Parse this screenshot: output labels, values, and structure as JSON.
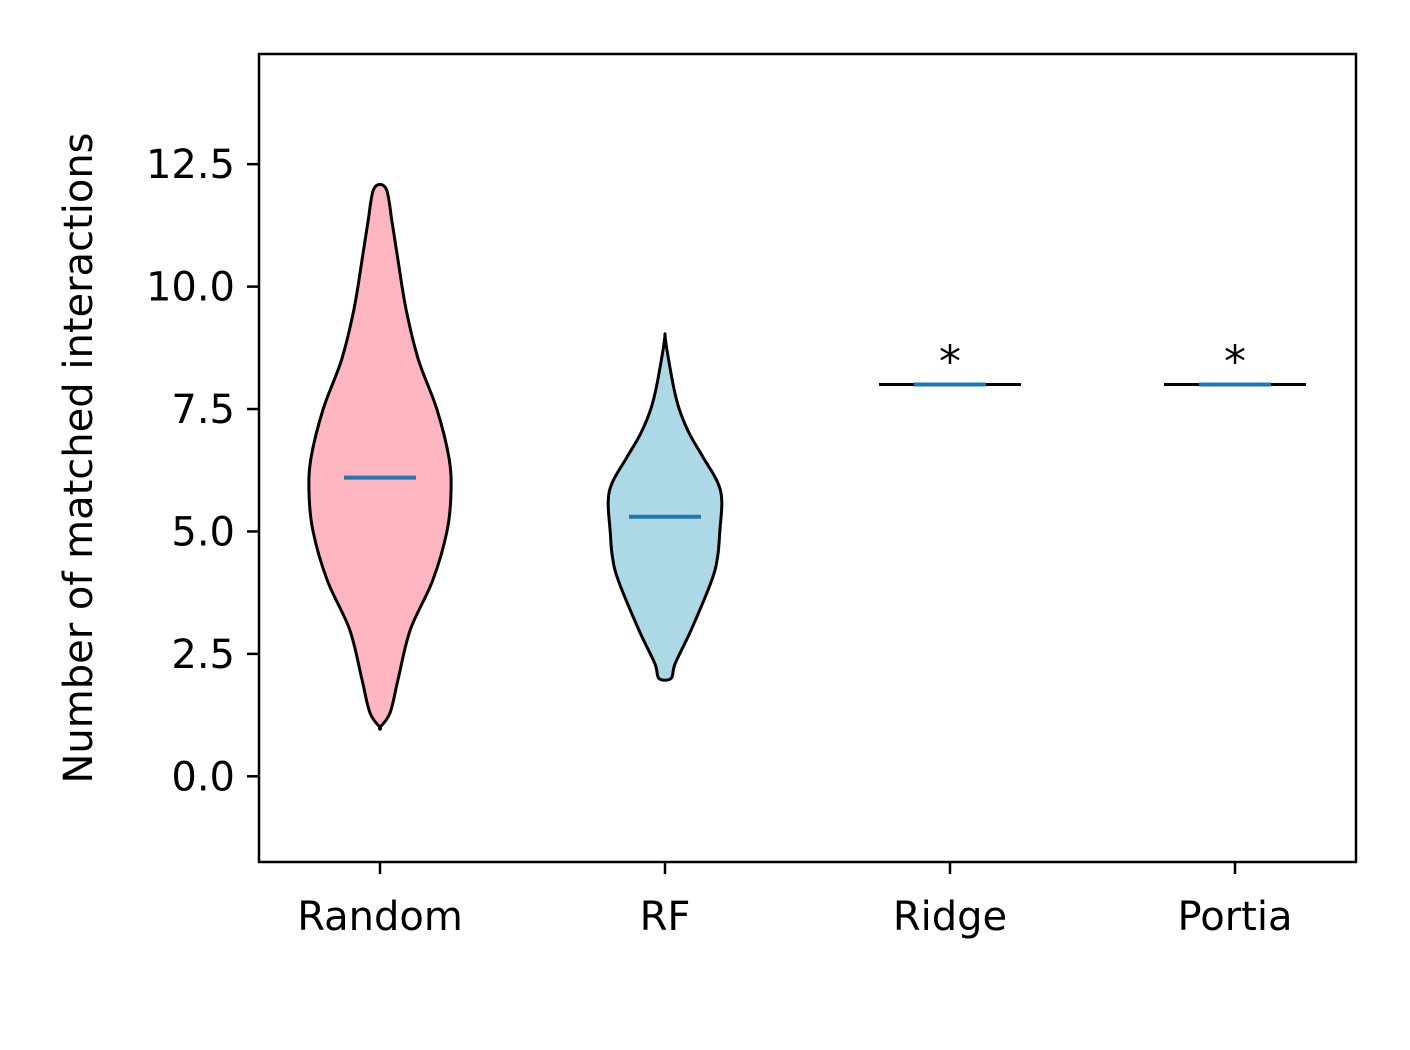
{
  "chart_data": {
    "type": "violin",
    "categories": [
      "Random",
      "RF",
      "Ridge",
      "Portia"
    ],
    "ylabel": "Number of matched interactions",
    "xlabel": "",
    "ylim": [
      -1.75,
      14.75
    ],
    "yticks": [
      0.0,
      2.5,
      5.0,
      7.5,
      10.0,
      12.5
    ],
    "ytick_labels": [
      "0.0",
      "2.5",
      "5.0",
      "7.5",
      "10.0",
      "12.5"
    ],
    "grid": false,
    "legend": "none",
    "series": [
      {
        "category": "Random",
        "color": "#ffb6c1",
        "min": 1,
        "max": 12,
        "mean": 6.1,
        "profile": [
          [
            1.0,
            0.0
          ],
          [
            1.3,
            0.05
          ],
          [
            2.0,
            0.09
          ],
          [
            3.0,
            0.15
          ],
          [
            4.0,
            0.26
          ],
          [
            5.0,
            0.33
          ],
          [
            5.8,
            0.35
          ],
          [
            6.5,
            0.34
          ],
          [
            7.5,
            0.28
          ],
          [
            8.5,
            0.19
          ],
          [
            9.5,
            0.13
          ],
          [
            10.5,
            0.09
          ],
          [
            11.3,
            0.06
          ],
          [
            12.0,
            0.03
          ]
        ],
        "annotation": ""
      },
      {
        "category": "RF",
        "color": "#add8e6",
        "min": 2,
        "max": 9,
        "mean": 5.3,
        "profile": [
          [
            2.0,
            0.03
          ],
          [
            2.3,
            0.05
          ],
          [
            3.0,
            0.13
          ],
          [
            4.0,
            0.23
          ],
          [
            4.5,
            0.26
          ],
          [
            5.0,
            0.27
          ],
          [
            5.6,
            0.28
          ],
          [
            6.0,
            0.26
          ],
          [
            6.5,
            0.19
          ],
          [
            7.0,
            0.12
          ],
          [
            7.5,
            0.07
          ],
          [
            8.0,
            0.04
          ],
          [
            8.7,
            0.01
          ],
          [
            9.0,
            0.0
          ]
        ],
        "annotation": ""
      },
      {
        "category": "Ridge",
        "color": "#000000",
        "min": 8,
        "max": 8,
        "mean": 8,
        "profile": [],
        "annotation": "*"
      },
      {
        "category": "Portia",
        "color": "#000000",
        "min": 8,
        "max": 8,
        "mean": 8,
        "profile": [],
        "annotation": "*"
      }
    ],
    "mean_color": "#1f77b4"
  }
}
